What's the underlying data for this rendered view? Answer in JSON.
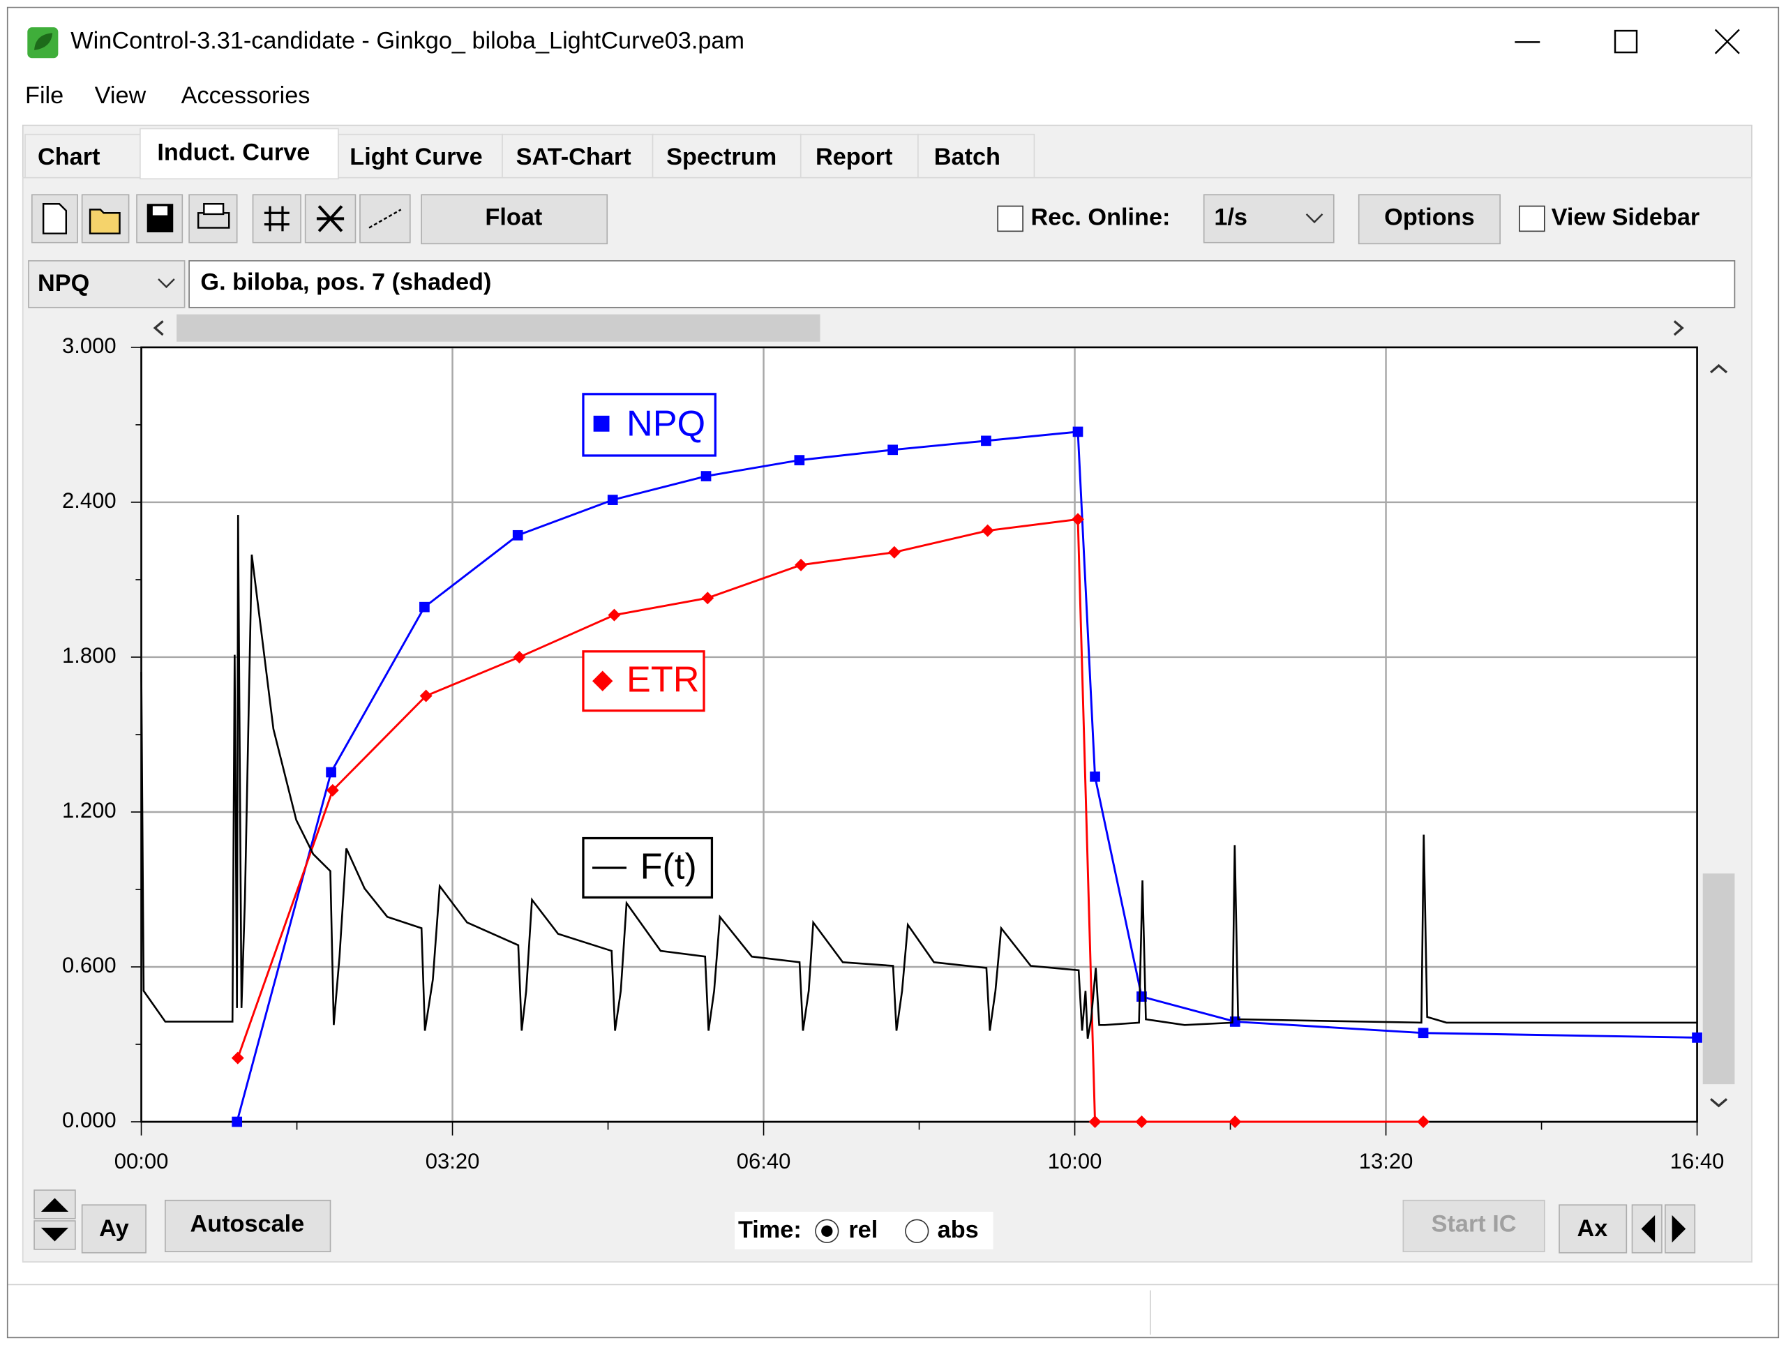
{
  "window": {
    "title": "WinControl-3.31-candidate - Ginkgo_ biloba_LightCurve03.pam"
  },
  "menu": [
    "File",
    "View",
    "Accessories"
  ],
  "tabs": [
    "Chart",
    "Induct. Curve",
    "Light Curve",
    "SAT-Chart",
    "Spectrum",
    "Report",
    "Batch"
  ],
  "toolbar": {
    "float": "Float",
    "rec_online": "Rec. Online:",
    "rate": "1/s",
    "options": "Options",
    "view_sidebar": "View Sidebar"
  },
  "parameter": "NPQ",
  "sample": "G. biloba, pos. 7 (shaded)",
  "bottom": {
    "ay": "Ay",
    "autoscale": "Autoscale",
    "time": "Time:",
    "rel": "rel",
    "abs": "abs",
    "start_ic": "Start IC",
    "ax": "Ax"
  },
  "chart_data": {
    "type": "line",
    "xlim": [
      0,
      1000
    ],
    "ylim": [
      0,
      3
    ],
    "xticks": [
      {
        "value": 0,
        "label": "00:00"
      },
      {
        "value": 200,
        "label": "03:20"
      },
      {
        "value": 400,
        "label": "06:40"
      },
      {
        "value": 600,
        "label": "10:00"
      },
      {
        "value": 800,
        "label": "13:20"
      },
      {
        "value": 1000,
        "label": "16:40"
      }
    ],
    "x_minor_ticks": [
      100,
      300,
      500,
      700,
      900
    ],
    "yticks": [
      {
        "value": 0,
        "label": "0.000"
      },
      {
        "value": 0.6,
        "label": "0.600"
      },
      {
        "value": 1.2,
        "label": "1.200"
      },
      {
        "value": 1.8,
        "label": "1.800"
      },
      {
        "value": 2.4,
        "label": "2.400"
      },
      {
        "value": 3,
        "label": "3.000"
      }
    ],
    "y_minor_ticks": [
      0.3,
      0.9,
      1.5,
      2.1,
      2.7
    ],
    "grid": true,
    "series": [
      {
        "name": "NPQ",
        "color": "#0000ff",
        "marker": "square",
        "x": [
          61.5,
          122,
          182,
          242,
          303,
          363,
          423,
          483,
          543,
          602,
          613,
          643,
          703,
          824,
          1000
        ],
        "values": [
          0,
          1.354,
          1.994,
          2.272,
          2.409,
          2.501,
          2.563,
          2.603,
          2.638,
          2.673,
          1.337,
          0.485,
          0.388,
          0.344,
          0.326
        ]
      },
      {
        "name": "ETR",
        "color": "#ff0000",
        "marker": "diamond",
        "x": [
          62,
          123,
          183,
          243,
          304,
          364,
          424,
          484,
          544,
          602,
          613,
          643,
          703,
          824
        ],
        "values": [
          0.247,
          1.284,
          1.65,
          1.8,
          1.963,
          2.029,
          2.157,
          2.206,
          2.29,
          2.334,
          0,
          0,
          0,
          0
        ]
      },
      {
        "name": "F(t)",
        "color": "#000000",
        "marker": "none",
        "x": [
          0,
          1.5,
          15.4,
          58.6,
          60,
          61.5,
          62.2,
          64.4,
          66.6,
          71,
          84.9,
          99.6,
          110.5,
          121.5,
          123.7,
          127.4,
          131.8,
          143.5,
          158.1,
          180.1,
          182.3,
          187.4,
          191.8,
          209.4,
          242.3,
          244.5,
          247.4,
          251.1,
          267.9,
          302.3,
          304.5,
          308.2,
          311.9,
          333.8,
          362.4,
          364.6,
          368.2,
          371.9,
          392.4,
          423.1,
          425.3,
          429,
          431.9,
          450.9,
          483.2,
          485.4,
          489,
          492.7,
          509.5,
          543.2,
          545.4,
          549,
          552.7,
          571.7,
          602.5,
          604.7,
          606.9,
          608.3,
          610.5,
          613.5,
          615.7,
          619.3,
          641.3,
          643.5,
          645.7,
          670.6,
          701.3,
          702.8,
          705,
          822.8,
          824.3,
          826.5,
          838.9,
          1000
        ],
        "values": [
          1.743,
          0.507,
          0.388,
          0.388,
          1.809,
          0.441,
          2.351,
          0.441,
          0.86,
          2.197,
          1.522,
          1.169,
          1.037,
          0.971,
          0.375,
          0.64,
          1.059,
          0.904,
          0.794,
          0.75,
          0.353,
          0.551,
          0.913,
          0.772,
          0.684,
          0.353,
          0.507,
          0.86,
          0.728,
          0.662,
          0.353,
          0.507,
          0.847,
          0.662,
          0.64,
          0.353,
          0.507,
          0.794,
          0.64,
          0.618,
          0.353,
          0.507,
          0.772,
          0.618,
          0.604,
          0.353,
          0.507,
          0.763,
          0.618,
          0.596,
          0.353,
          0.507,
          0.75,
          0.604,
          0.587,
          0.353,
          0.507,
          0.322,
          0.397,
          0.596,
          0.375,
          0.375,
          0.384,
          0.935,
          0.397,
          0.375,
          0.384,
          1.072,
          0.397,
          0.384,
          1.112,
          0.406,
          0.384,
          0.384
        ]
      }
    ]
  }
}
